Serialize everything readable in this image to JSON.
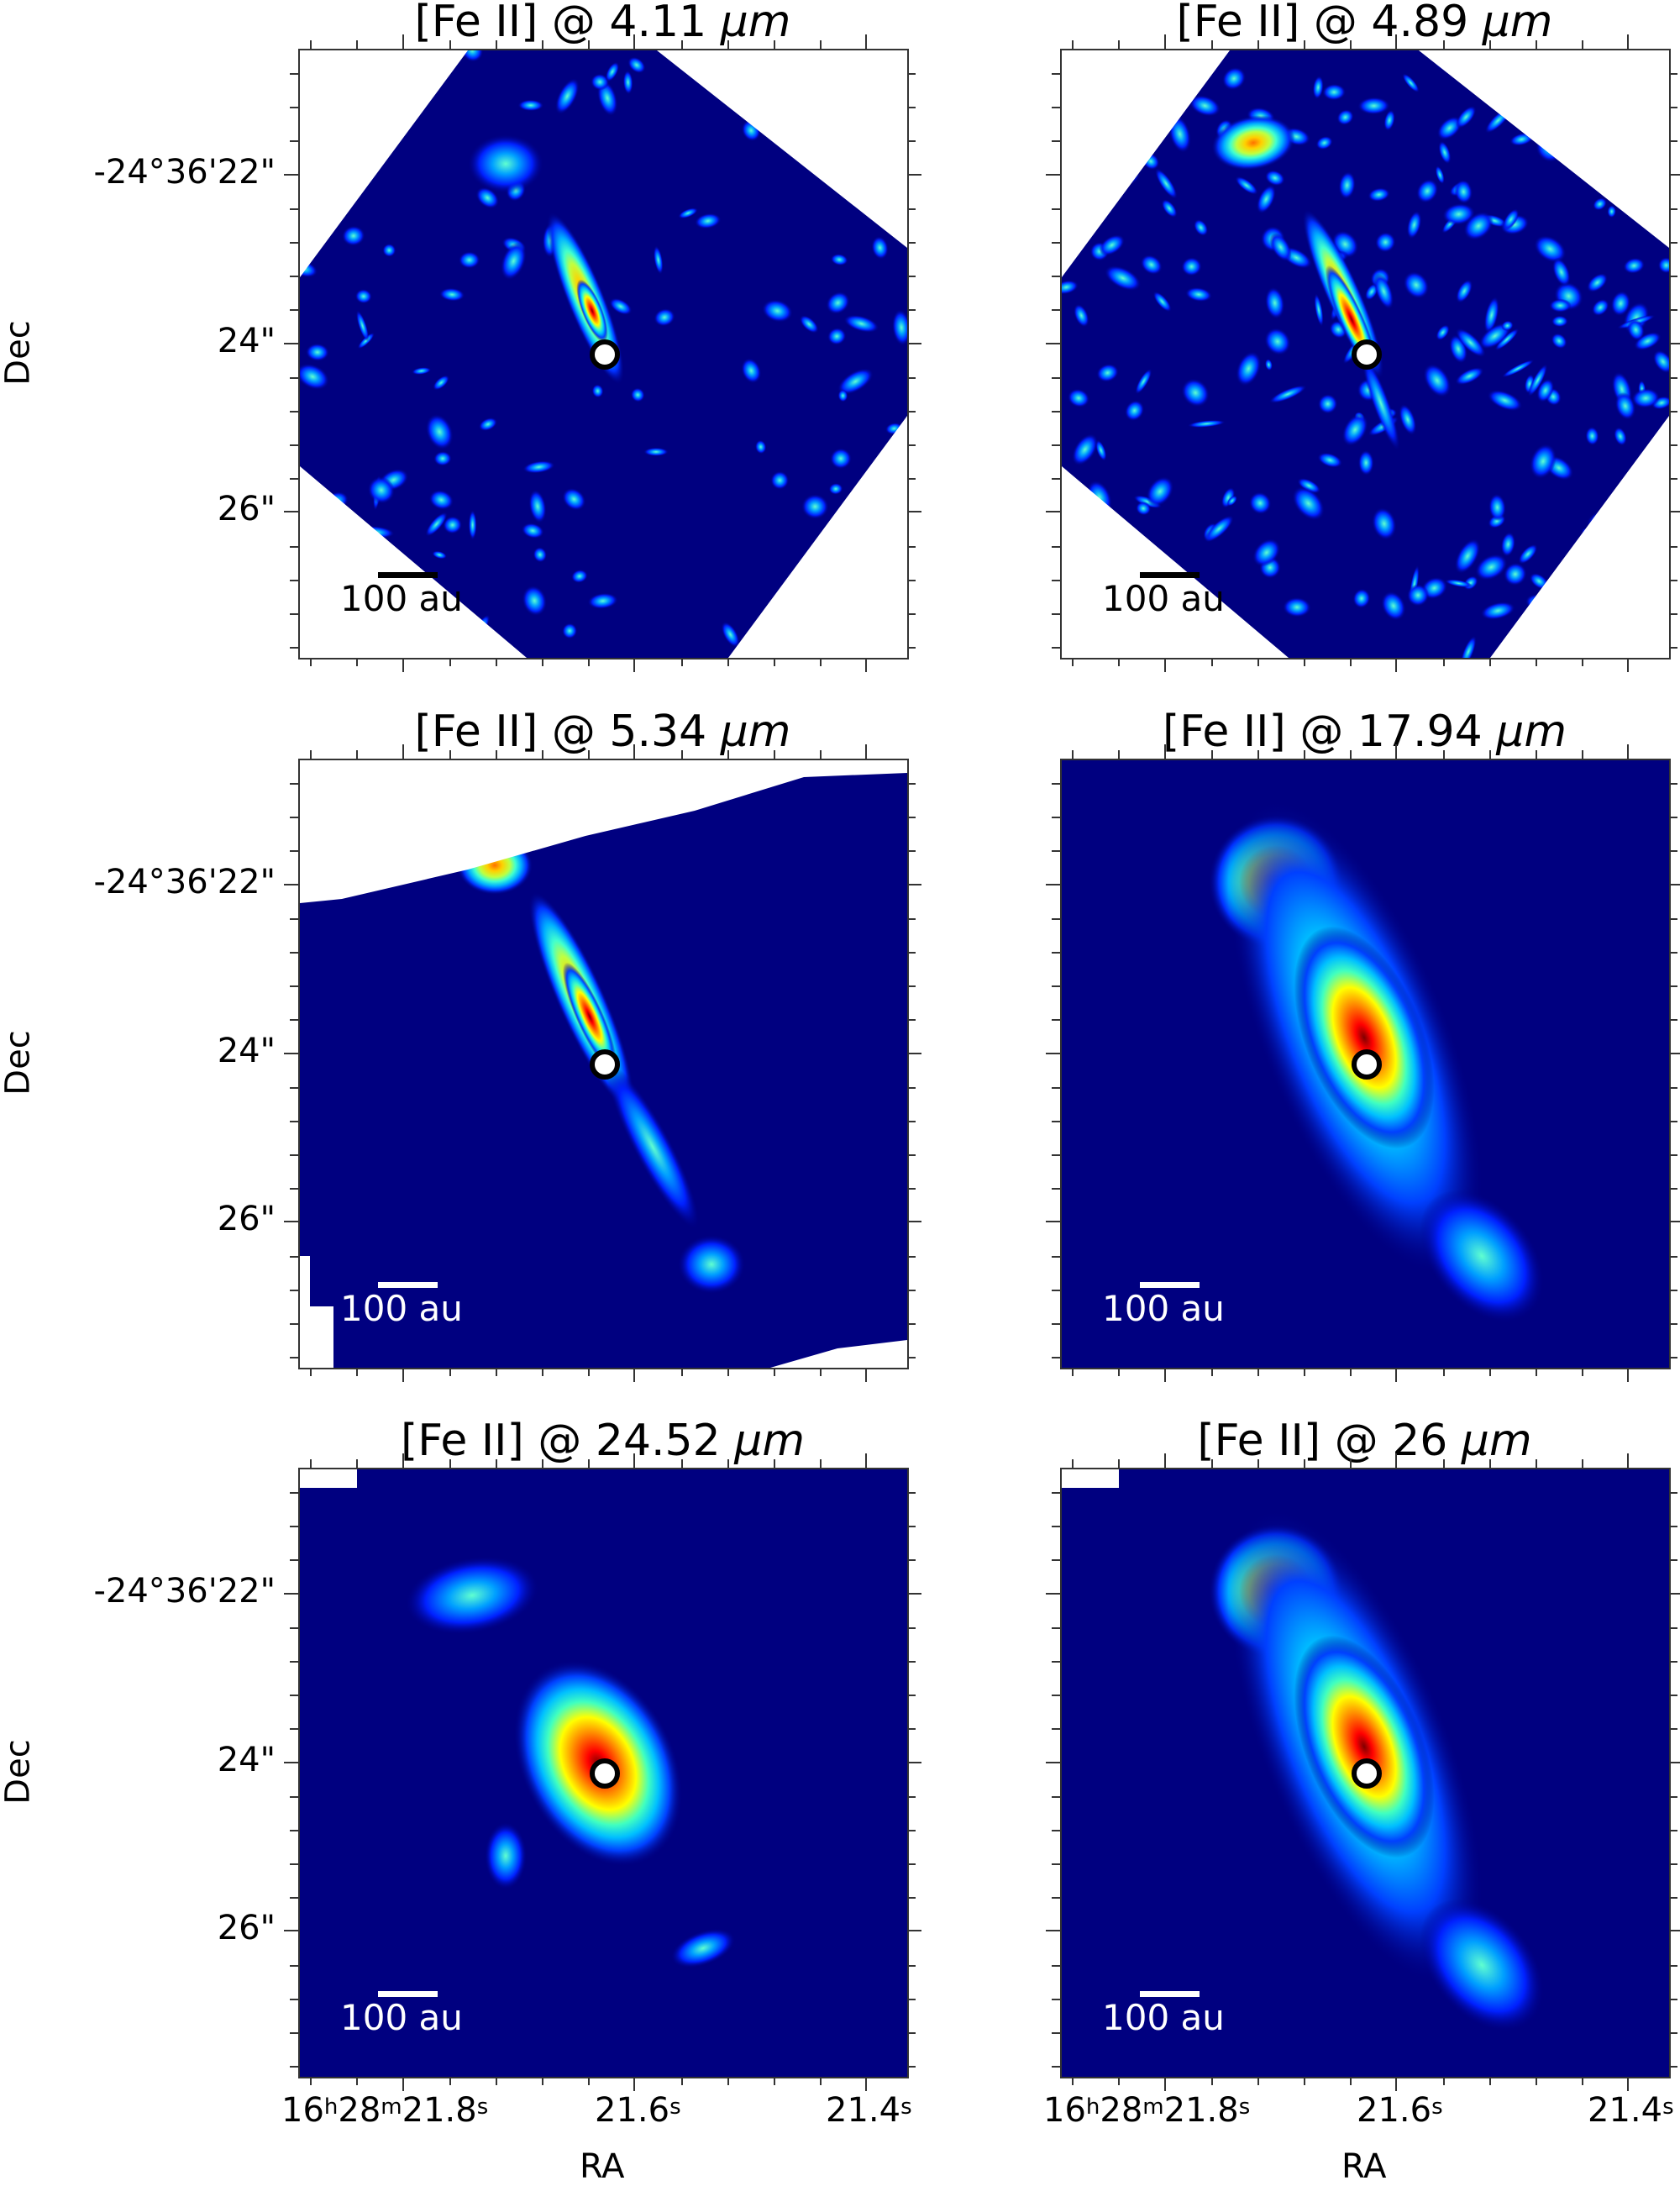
{
  "figure": {
    "panels": [
      {
        "id": "p1",
        "title_prefix": "[Fe II] @ 4.11 ",
        "title_unit": "μm",
        "scale_label": "100 au",
        "scale_color": "#000000",
        "col": 0,
        "row": 0,
        "style": "noisy",
        "mask": "rot"
      },
      {
        "id": "p2",
        "title_prefix": "[Fe II] @ 4.89 ",
        "title_unit": "μm",
        "scale_label": "100 au",
        "scale_color": "#000000",
        "col": 1,
        "row": 0,
        "style": "noisy2",
        "mask": "rot"
      },
      {
        "id": "p3",
        "title_prefix": "[Fe II] @ 5.34 ",
        "title_unit": "μm",
        "scale_label": "100 au",
        "scale_color": "#ffffff",
        "col": 0,
        "row": 1,
        "style": "jet",
        "mask": "slant"
      },
      {
        "id": "p4",
        "title_prefix": "[Fe II] @ 17.94 ",
        "title_unit": "μm",
        "scale_label": "100 au",
        "scale_color": "#ffffff",
        "col": 1,
        "row": 1,
        "style": "broad",
        "mask": "none"
      },
      {
        "id": "p5",
        "title_prefix": "[Fe II] @ 24.52 ",
        "title_unit": "μm",
        "scale_label": "100 au",
        "scale_color": "#ffffff",
        "col": 0,
        "row": 2,
        "style": "compact",
        "mask": "corner"
      },
      {
        "id": "p6",
        "title_prefix": "[Fe II] @ 26 ",
        "title_unit": "μm",
        "scale_label": "100 au",
        "scale_color": "#ffffff",
        "col": 1,
        "row": 2,
        "style": "broad2",
        "mask": "corner"
      }
    ],
    "y_axis": {
      "label": "Dec",
      "ticks": [
        "-24°36'22\"",
        "24\"",
        "26\""
      ]
    },
    "x_axis": {
      "label": "RA",
      "ticks": [
        {
          "main": "16",
          "h": "h",
          "m1": "28",
          "m": "m",
          "s1": "21.8",
          "s": "s"
        },
        {
          "main": "21.6",
          "s": "s"
        },
        {
          "main": "21.4",
          "s": "s"
        }
      ]
    }
  },
  "chart_data": {
    "type": "heatmap",
    "title": "[Fe II] line emission maps",
    "layout": "3x2 grid",
    "panels": [
      {
        "title": "[Fe II] @ 4.11 μm",
        "peak_location": "just NW of source, along jet axis",
        "features": [
          "narrow jet knot near source",
          "noisy background",
          "rotated field of view"
        ]
      },
      {
        "title": "[Fe II] @ 4.89 μm",
        "peak_location": "jet NW of source",
        "features": [
          "elongated jet",
          "bright knot to NE (upper-left)",
          "noisy background"
        ]
      },
      {
        "title": "[Fe II] @ 5.34 μm",
        "peak_location": "jet NW of source",
        "features": [
          "narrow jet extending NW-SE",
          "knot at top edge",
          "SE extension to ~26\""
        ]
      },
      {
        "title": "[Fe II] @ 17.94 μm",
        "peak_location": "at source",
        "features": [
          "broad elongated emission",
          "secondary knot upper-left",
          "SE extension"
        ]
      },
      {
        "title": "[Fe II] @ 24.52 μm",
        "peak_location": "at source",
        "features": [
          "compact emission around source",
          "faint NW knot"
        ]
      },
      {
        "title": "[Fe II] @ 26 μm",
        "peak_location": "at source",
        "features": [
          "broad elongated emission",
          "secondary knot upper-left",
          "SE extension"
        ]
      }
    ],
    "xlabel": "RA",
    "ylabel": "Dec",
    "x_ticks": [
      "16h28m21.8s",
      "21.6s",
      "21.4s"
    ],
    "y_ticks": [
      "-24°36'22\"",
      "24\"",
      "26\""
    ],
    "scale_bar": "100 au",
    "colormap": "jet",
    "marker": "source position (white circle with black outline)"
  }
}
